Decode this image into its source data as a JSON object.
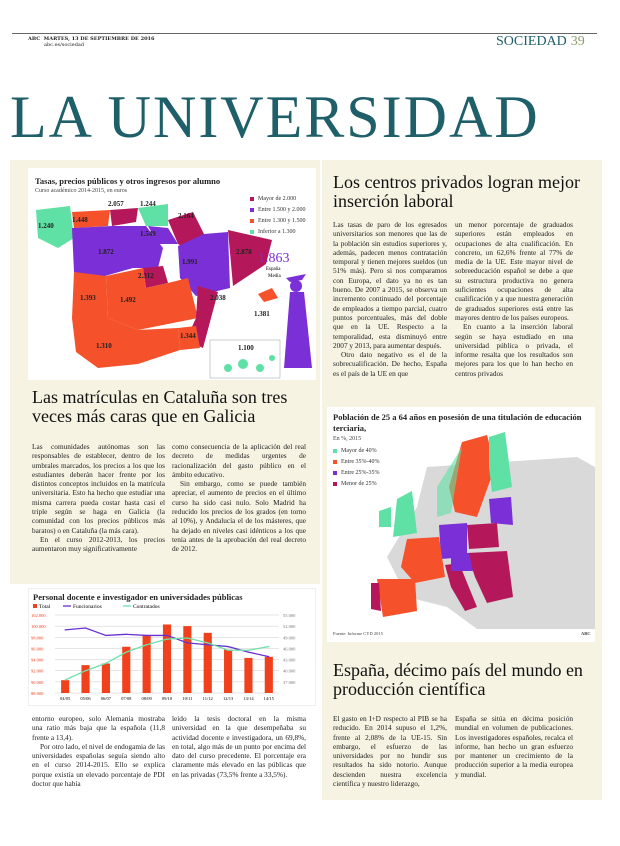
{
  "header": {
    "brand": "ABC",
    "date": "MARTES, 13 DE SEPTIEMBRE DE 2016",
    "url": "abc.es/sociedad",
    "section": "SOCIEDAD",
    "page": "39"
  },
  "title": "LA UNIVERSIDAD",
  "fees_map": {
    "title": "Tasas, precios públicos y otros ingresos por alumno",
    "subtitle": "Curso académico 2014-2015, en euros",
    "legend": [
      {
        "label": "Mayor de 2.000",
        "color": "#b5185a"
      },
      {
        "label": "Entre 1.500 y 2.000",
        "color": "#7b2fd6"
      },
      {
        "label": "Entre 1.300 y 1.500",
        "color": "#f5512a"
      },
      {
        "label": "Inferior a 1.300",
        "color": "#5fe0a4"
      }
    ],
    "regions": [
      "1.240",
      "1.448",
      "2.057",
      "1.244",
      "2.164",
      "1.549",
      "1.872",
      "1.991",
      "2.878",
      "2.312",
      "1.393",
      "1.492",
      "2.038",
      "1.381",
      "1.310",
      "1.344",
      "1.100"
    ],
    "average_value": "1.863",
    "average_label": "España",
    "average_label2": "Media"
  },
  "article1": {
    "headline": "Las matrículas en Cataluña son tres veces más caras que en Galicia",
    "col1": "Las comunidades autónomas son las responsables de establecer, dentro de los umbrales marcados, los precios a los que los estudiantes deberán hacer frente por los distintos conceptos incluidos en la matrícula universitaria. Esto ha hecho que estudiar una misma carrera pueda costar hasta casi el triple según se haga en Galicia (la comunidad con los precios públicos más baratos) o en Cataluña (la más cara).",
    "col1b": "En el curso 2012-2013, los precios aumentaron muy significativamente",
    "col2": "como consecuencia de la aplicación del real decreto de medidas urgentes de racionalización del gasto público en el ámbito educativo.",
    "col2b": "Sin embargo, como se puede también apreciar, el aumento de precios en el último curso ha sido casi nulo. Solo Madrid ha reducido los precios de los grados (en torno al 10%), y Andalucía el de los másteres, que ha dejado en niveles casi idénticos a los que tenía antes de la aprobación del real decreto de 2012."
  },
  "chart_data": {
    "type": "bar+line",
    "title": "Personal docente e investigador en universidades públicas",
    "categories": [
      "04/05",
      "05/06",
      "06/07",
      "07/08",
      "08/09",
      "09/10",
      "10/11",
      "11/12",
      "12/13",
      "13/14",
      "14/15"
    ],
    "series": [
      {
        "name": "Total",
        "type": "bar",
        "axis": "left",
        "color": "#f0401c",
        "values": [
          90300,
          93000,
          93300,
          96300,
          98300,
          100300,
          100000,
          98800,
          95800,
          94300,
          94500
        ]
      },
      {
        "name": "Funcionarios",
        "type": "line",
        "axis": "right",
        "color": "#6a2fd0",
        "values": [
          51000,
          51500,
          49500,
          49800,
          49500,
          49500,
          47500,
          47000,
          46500,
          45000,
          43800
        ]
      },
      {
        "name": "Contratados",
        "type": "line",
        "axis": "right",
        "color": "#6fe0aa",
        "values": [
          37500,
          40000,
          42000,
          45000,
          47000,
          48500,
          48800,
          47500,
          45500,
          45500,
          46500
        ]
      }
    ],
    "left_ticks": [
      "102.000",
      "100.000",
      "98.000",
      "96.000",
      "94.000",
      "92.000",
      "90.000",
      "88.000"
    ],
    "right_ticks": [
      "55.000",
      "52.000",
      "49.000",
      "46.000",
      "43.000",
      "40.000",
      "37.000"
    ],
    "ylim_left": [
      88000,
      102000
    ],
    "ylim_right": [
      34000,
      55000
    ],
    "grid": true,
    "legend": "top-left"
  },
  "article1_cont": {
    "col1": "entorno europeo, solo Alemania mostraba una ratio más baja que la española (11,8 frente a 13,4).",
    "col1b": "Por otro lado, el nivel de endogamia de las universidades españolas seguía siendo alto en el curso 2014-2015. Ello se explica porque existía un elevado porcentaje de PDI doctor que había",
    "col2": "leído la tesis doctoral en la misma universidad en la que desempeñaba su actividad docente e investigadora, un 69,8%, en total, algo más de un punto por encima del dato del curso precedente. El porcentaje era claramente más elevado en las públicas que en las privadas (73,5% frente a 33,5%)."
  },
  "article2": {
    "headline": "Los centros privados logran mejor inserción laboral",
    "col1": "Las tasas de paro de los egresados universitarios son menores que las de la población sin estudios superiores y, además, padecen menos contratación temporal y tienen mejores sueldos (un 51% más). Pero si nos comparamos con Europa, el dato ya no es tan bueno. De 2007 a 2015, se observa un incremento continuado del porcentaje de empleados a tiempo parcial, cuatro puntos porcentuales, más del doble que en la UE. Respecto a la temporalidad, esta disminuyó entre 2007 y 2013, para aumentar después.",
    "col1b": "Otro dato negativo es el de la sobrecualificación. De hecho, España es el país de la UE en que",
    "col2": "un menor porcentaje de graduados superiores están empleados en ocupaciones de alta cualificación. En concreto, un 62,6% frente al 77% de media de la UE. Este mayor nivel de sobreeducación español se debe a que su estructura productiva no genera suficientes ocupaciones de alta cualificación y a que nuestra generación de graduados superiores está entre las mayores dentro de los países europeos.",
    "col2b": "En cuanto a la inserción laboral según se haya estudiado en una universidad pública o privada, el informe resalta que los resultados son mejores para los que lo han hecho en centros privados"
  },
  "europe_map": {
    "title": "Población de 25 a 64 años en posesión de una titulación de educación terciaria,",
    "subtitle": "En %, 2015",
    "legend": [
      {
        "label": "Mayor de 40%",
        "color": "#5fe0a4"
      },
      {
        "label": "Entre 35%-40%",
        "color": "#f5512a"
      },
      {
        "label": "Entre 25%-35%",
        "color": "#7b2fd6"
      },
      {
        "label": "Menor de 25%",
        "color": "#b5185a"
      }
    ],
    "source": "Fuente: Informe CYD 2015",
    "credit": "ABC"
  },
  "article3": {
    "headline": "España, décimo país del mundo en producción científica",
    "col1": "El gasto en I+D respecto al PIB se ha reducido. En 2014 supuso el 1,2%, frente al 2,08% de la UE-15. Sin embargo, el esfuerzo de las universidades por no hundir sus resultados ha sido notorio. Aunque descienden nuestra excelencia científica y nuestro liderazgo,",
    "col2": "España se sitúa en décima posición mundial en volumen de publicaciones. Los investigadores españoles, recalca el informe, han hecho un gran esfuerzo por mantener un crecimiento de la producción superior a la media europea y mundial."
  }
}
